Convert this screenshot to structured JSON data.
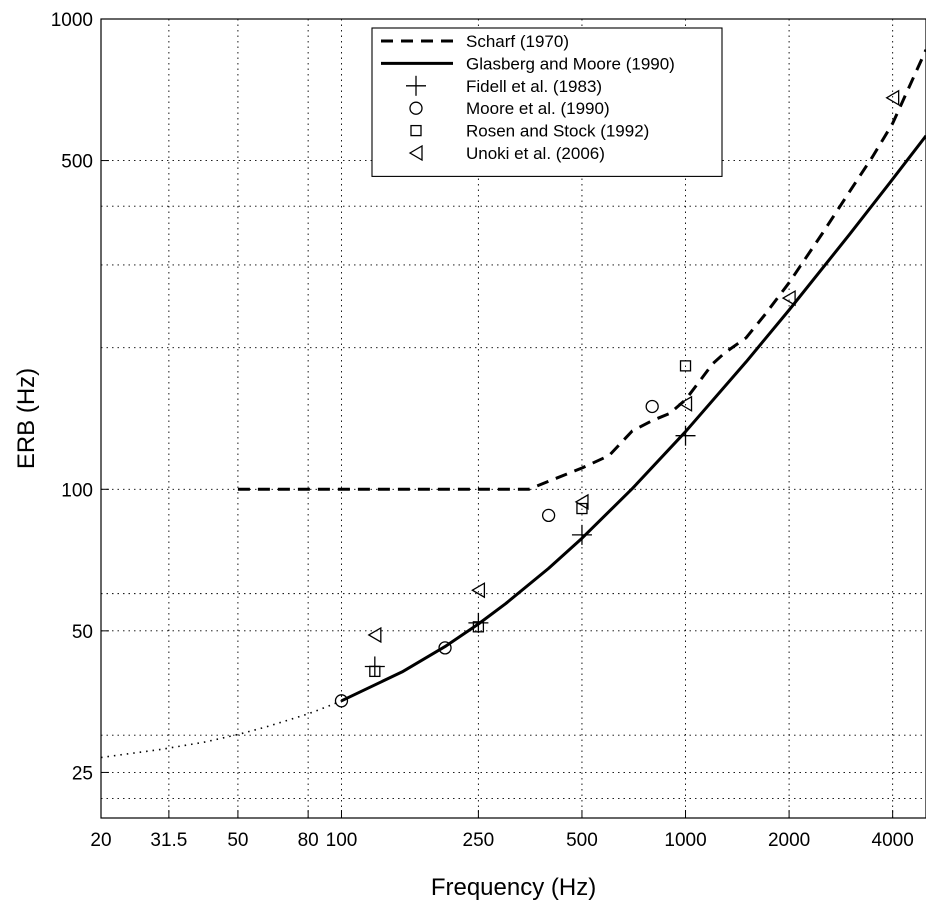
{
  "chart_data": {
    "type": "line",
    "xlabel": "Frequency (Hz)",
    "ylabel": "ERB (Hz)",
    "x_scale": "log",
    "y_scale": "log",
    "xlim": [
      20,
      5000
    ],
    "ylim": [
      20,
      1000
    ],
    "grid": true,
    "legend_position": "top-center",
    "x_ticks": [
      {
        "value": 20,
        "label": "20"
      },
      {
        "value": 31.5,
        "label": "31.5"
      },
      {
        "value": 50,
        "label": "50"
      },
      {
        "value": 80,
        "label": "80"
      },
      {
        "value": 100,
        "label": "100"
      },
      {
        "value": 250,
        "label": "250"
      },
      {
        "value": 500,
        "label": "500"
      },
      {
        "value": 1000,
        "label": "1000"
      },
      {
        "value": 2000,
        "label": "2000"
      },
      {
        "value": 4000,
        "label": "4000"
      }
    ],
    "x_gridlines": [
      31.5,
      50,
      80,
      100,
      250,
      500,
      1000,
      2000,
      4000
    ],
    "y_ticks": [
      {
        "value": 25,
        "label": "25"
      },
      {
        "value": 50,
        "label": "50"
      },
      {
        "value": 100,
        "label": "100"
      },
      {
        "value": 500,
        "label": "500"
      },
      {
        "value": 1000,
        "label": "1000"
      }
    ],
    "y_gridlines": [
      22,
      25,
      30,
      50,
      60,
      100,
      200,
      300,
      400,
      500
    ],
    "series": [
      {
        "name": "Scharf (1970)",
        "kind": "line",
        "style": "dashed",
        "x": [
          50,
          100,
          150,
          200,
          300,
          350,
          400,
          500,
          600,
          700,
          800,
          900,
          1000,
          1100,
          1200,
          1300,
          1500,
          1700,
          2000,
          2500,
          3000,
          3500,
          4000,
          5000
        ],
        "y": [
          100,
          100,
          100,
          100,
          100,
          100,
          104,
          111,
          118,
          133,
          140,
          145,
          155,
          170,
          185,
          195,
          210,
          235,
          275,
          350,
          430,
          510,
          600,
          860
        ]
      },
      {
        "name": "Glasberg and Moore (1990)",
        "kind": "line",
        "style": "solid",
        "x": [
          100,
          150,
          200,
          250,
          300,
          400,
          500,
          700,
          1000,
          1500,
          2000,
          3000,
          4000,
          5000
        ],
        "y": [
          35.5,
          40.9,
          46.3,
          51.7,
          57.1,
          67.9,
          78.7,
          100.3,
          132.6,
          186.6,
          240.6,
          348.6,
          456.6,
          564.6
        ]
      },
      {
        "name": "",
        "kind": "line",
        "style": "dotted",
        "x": [
          20,
          30,
          40,
          50,
          60,
          70,
          80,
          90,
          100
        ],
        "y": [
          26.9,
          28.0,
          29.0,
          30.1,
          31.2,
          32.3,
          33.3,
          34.4,
          35.5
        ]
      },
      {
        "name": "Fidell et al. (1983)",
        "kind": "marker",
        "marker": "plus",
        "x": [
          125,
          250,
          500,
          1000
        ],
        "y": [
          42,
          52,
          80,
          130
        ]
      },
      {
        "name": "Moore et al. (1990)",
        "kind": "marker",
        "marker": "circle",
        "x": [
          100,
          200,
          400,
          800
        ],
        "y": [
          35.5,
          46,
          88,
          150
        ]
      },
      {
        "name": "Rosen and Stock (1992)",
        "kind": "marker",
        "marker": "square",
        "x": [
          125,
          250,
          500,
          1000
        ],
        "y": [
          41,
          51,
          91,
          183
        ]
      },
      {
        "name": "Unoki et al. (2006)",
        "kind": "marker",
        "marker": "triangle-left",
        "x": [
          125,
          250,
          500,
          1000,
          2000,
          4000
        ],
        "y": [
          49,
          61,
          94,
          152,
          255,
          680
        ]
      }
    ]
  }
}
